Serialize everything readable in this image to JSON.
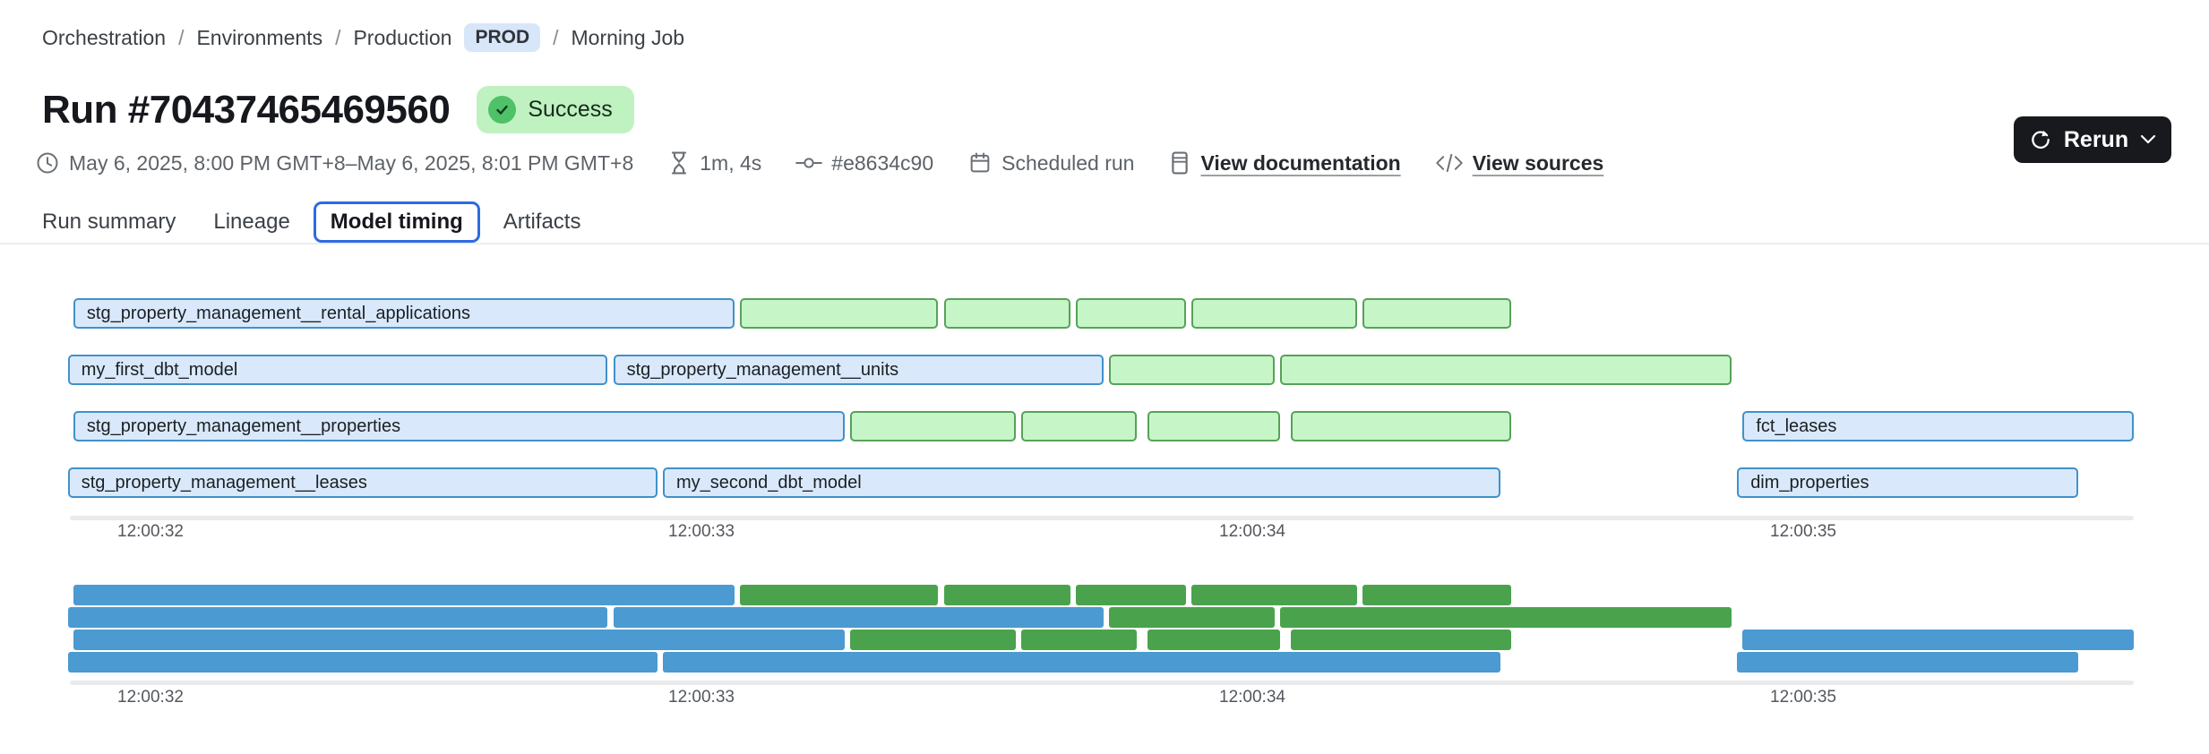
{
  "breadcrumb": {
    "separator": "/",
    "items": [
      "Orchestration",
      "Environments",
      "Production"
    ],
    "env_badge": "PROD",
    "current": "Morning Job"
  },
  "header": {
    "title": "Run #70437465469560",
    "status": "Success",
    "rerun_label": "Rerun"
  },
  "meta": {
    "time_range": "May 6, 2025, 8:00 PM GMT+8–May 6, 2025, 8:01 PM GMT+8",
    "duration": "1m, 4s",
    "commit_hash": "#e8634c90",
    "trigger": "Scheduled run",
    "documentation_link": "View documentation",
    "sources_link": "View sources"
  },
  "tabs": [
    {
      "label": "Run summary",
      "active": false
    },
    {
      "label": "Lineage",
      "active": false
    },
    {
      "label": "Model timing",
      "active": true
    },
    {
      "label": "Artifacts",
      "active": false
    }
  ],
  "chart_data": {
    "type": "gantt",
    "title": "Model timing",
    "row_count": 4,
    "time_base": "12:00:00",
    "x_axis": {
      "ticks": [
        {
          "label": "12:00:32",
          "t": 32
        },
        {
          "label": "12:00:33",
          "t": 33
        },
        {
          "label": "12:00:34",
          "t": 34
        },
        {
          "label": "12:00:35",
          "t": 35
        }
      ],
      "range": [
        31.7,
        35.75
      ]
    },
    "colors": {
      "blue_fill": "#d9e9fb",
      "blue_border": "#4191c9",
      "green_fill": "#c6f6c8",
      "green_border": "#57a159",
      "minimap_blue": "#4b9ad1",
      "minimap_green": "#4aa34c"
    },
    "bars": [
      {
        "row": 0,
        "start": 31.86,
        "end": 33.06,
        "color": "blue",
        "label": "stg_property_management__rental_applications"
      },
      {
        "row": 0,
        "start": 33.07,
        "end": 33.43,
        "color": "green",
        "label": ""
      },
      {
        "row": 0,
        "start": 33.44,
        "end": 33.67,
        "color": "green",
        "label": ""
      },
      {
        "row": 0,
        "start": 33.68,
        "end": 33.88,
        "color": "green",
        "label": ""
      },
      {
        "row": 0,
        "start": 33.89,
        "end": 34.19,
        "color": "green",
        "label": ""
      },
      {
        "row": 0,
        "start": 34.2,
        "end": 34.47,
        "color": "green",
        "label": ""
      },
      {
        "row": 1,
        "start": 31.85,
        "end": 32.83,
        "color": "blue",
        "label": "my_first_dbt_model"
      },
      {
        "row": 1,
        "start": 32.84,
        "end": 33.73,
        "color": "blue",
        "label": "stg_property_management__units"
      },
      {
        "row": 1,
        "start": 33.74,
        "end": 34.04,
        "color": "green",
        "label": ""
      },
      {
        "row": 1,
        "start": 34.05,
        "end": 34.87,
        "color": "green",
        "label": ""
      },
      {
        "row": 2,
        "start": 31.86,
        "end": 33.26,
        "color": "blue",
        "label": "stg_property_management__properties"
      },
      {
        "row": 2,
        "start": 33.27,
        "end": 33.57,
        "color": "green",
        "label": ""
      },
      {
        "row": 2,
        "start": 33.58,
        "end": 33.79,
        "color": "green",
        "label": ""
      },
      {
        "row": 2,
        "start": 33.81,
        "end": 34.05,
        "color": "green",
        "label": ""
      },
      {
        "row": 2,
        "start": 34.07,
        "end": 34.47,
        "color": "green",
        "label": ""
      },
      {
        "row": 2,
        "start": 34.89,
        "end": 35.6,
        "color": "blue",
        "label": "fct_leases"
      },
      {
        "row": 3,
        "start": 31.85,
        "end": 32.92,
        "color": "blue",
        "label": "stg_property_management__leases"
      },
      {
        "row": 3,
        "start": 32.93,
        "end": 34.45,
        "color": "blue",
        "label": "my_second_dbt_model"
      },
      {
        "row": 3,
        "start": 34.88,
        "end": 35.5,
        "color": "blue",
        "label": "dim_properties"
      }
    ]
  }
}
